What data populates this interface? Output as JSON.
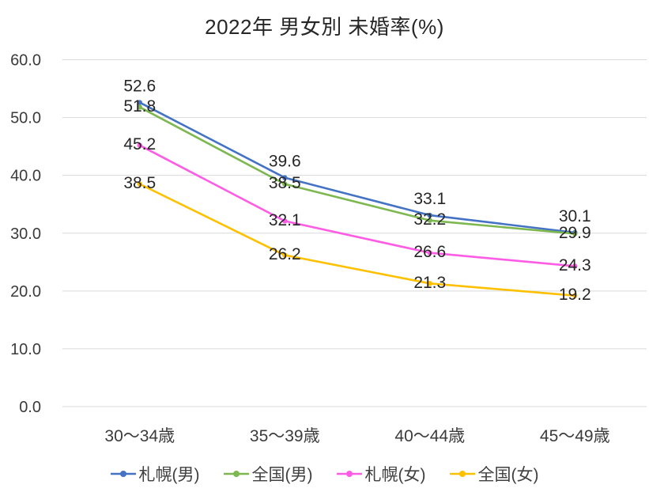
{
  "chart": {
    "title": "2022年 男女別 未婚率(%)"
  },
  "chart_data": {
    "type": "line",
    "title": "2022年 男女別 未婚率(%)",
    "categories": [
      "30〜34歳",
      "35〜39歳",
      "40〜44歳",
      "45〜49歳"
    ],
    "series": [
      {
        "name": "札幌(男)",
        "color": "#4472C4",
        "values": [
          52.6,
          39.6,
          33.1,
          30.1
        ],
        "label_position": "above"
      },
      {
        "name": "全国(男)",
        "color": "#7CB84F",
        "values": [
          51.8,
          38.5,
          32.2,
          29.9
        ],
        "label_position": "center"
      },
      {
        "name": "札幌(女)",
        "color": "#FF5CE6",
        "values": [
          45.2,
          32.1,
          26.6,
          24.3
        ],
        "label_position": "center"
      },
      {
        "name": "全国(女)",
        "color": "#FFC000",
        "values": [
          38.5,
          26.2,
          21.3,
          19.2
        ],
        "label_position": "center"
      }
    ],
    "xlabel": "",
    "ylabel": "",
    "ylim": [
      0,
      60
    ],
    "ytick_step": 10,
    "ytick_decimals": 1,
    "grid": true,
    "gridline_color": "#D9D9D9",
    "data_labels": true,
    "legend_position": "bottom",
    "markers": true
  }
}
